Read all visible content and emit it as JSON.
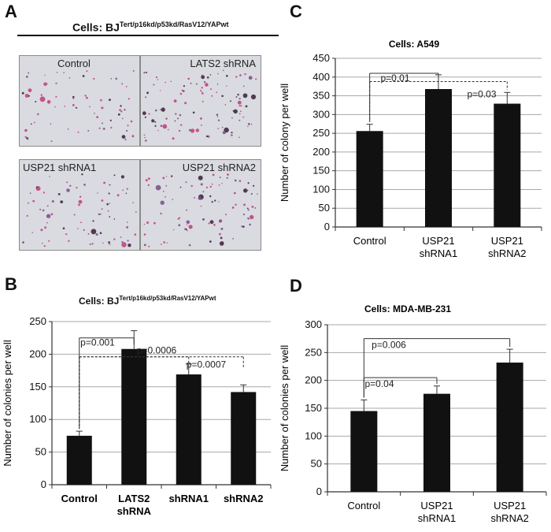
{
  "panel_a": {
    "label": "A",
    "header_prefix": "Cells: BJ",
    "header_super": "Tert/p16kd/p53kd/RasV12/YAPwt",
    "images": [
      "Control",
      "LATS2 shRNA",
      "USP21 shRNA1",
      "USP21 shRNA2"
    ]
  },
  "panel_b": {
    "label": "B",
    "title_prefix": "Cells: BJ",
    "title_super": "Tert/p16kd/p53kd/RasV12/YAPwt"
  },
  "panel_c": {
    "label": "C"
  },
  "panel_d": {
    "label": "D"
  },
  "chart_data": [
    {
      "id": "B",
      "type": "bar",
      "title": "Cells: BJ Tert/p16kd/p53kd/RasV12/YAPwt",
      "categories": [
        [
          "Control"
        ],
        [
          "LATS2",
          "shRNA"
        ],
        [
          "shRNA1"
        ],
        [
          "shRNA2"
        ]
      ],
      "values": [
        75,
        208,
        169,
        142
      ],
      "errors": [
        7,
        28,
        16,
        11
      ],
      "ylabel": "Number of colonies per well",
      "xlabel": "",
      "ylim": [
        0,
        250
      ],
      "yticks": [
        0,
        50,
        100,
        150,
        200,
        250
      ],
      "grid": true,
      "bold_categories": true,
      "annotations": [
        {
          "text": "p=0.001",
          "from": 0,
          "to": 1,
          "y": 225,
          "style": "solid"
        },
        {
          "text": "p=0.0006",
          "from": 0,
          "to": 2,
          "y": 196,
          "style": "dotted"
        },
        {
          "text": "p=0.0007",
          "from": 0,
          "to": 3,
          "y": 196,
          "style": "dotted"
        }
      ]
    },
    {
      "id": "C",
      "type": "bar",
      "title": "Cells: A549",
      "categories": [
        [
          "Control"
        ],
        [
          "USP21",
          "shRNA1"
        ],
        [
          "USP21",
          "shRNA2"
        ]
      ],
      "values": [
        256,
        368,
        329
      ],
      "errors": [
        18,
        38,
        30
      ],
      "ylabel": "Number of colony per well",
      "xlabel": "",
      "ylim": [
        0,
        450
      ],
      "yticks": [
        0,
        50,
        100,
        150,
        200,
        250,
        300,
        350,
        400,
        450
      ],
      "grid": true,
      "bold_categories": false,
      "annotations": [
        {
          "text": "p=0.01",
          "from": 0,
          "to": 1,
          "y": 410,
          "style": "solid"
        },
        {
          "text": "p=0.03",
          "from": 0,
          "to": 2,
          "y": 388,
          "style": "dotted"
        }
      ]
    },
    {
      "id": "D",
      "type": "bar",
      "title": "Cells: MDA-MB-231",
      "categories": [
        [
          "Control"
        ],
        [
          "USP21",
          "shRNA1"
        ],
        [
          "USP21",
          "shRNA2"
        ]
      ],
      "values": [
        145,
        176,
        232
      ],
      "errors": [
        20,
        14,
        24
      ],
      "ylabel": "Number of colonies per well",
      "xlabel": "",
      "ylim": [
        0,
        300
      ],
      "yticks": [
        0,
        50,
        100,
        150,
        200,
        250,
        300
      ],
      "grid": true,
      "bold_categories": false,
      "annotations": [
        {
          "text": "p=0.006",
          "from": 0,
          "to": 2,
          "y": 275,
          "style": "solid"
        },
        {
          "text": "p=0.04",
          "from": 0,
          "to": 1,
          "y": 205,
          "style": "solid"
        }
      ]
    }
  ]
}
